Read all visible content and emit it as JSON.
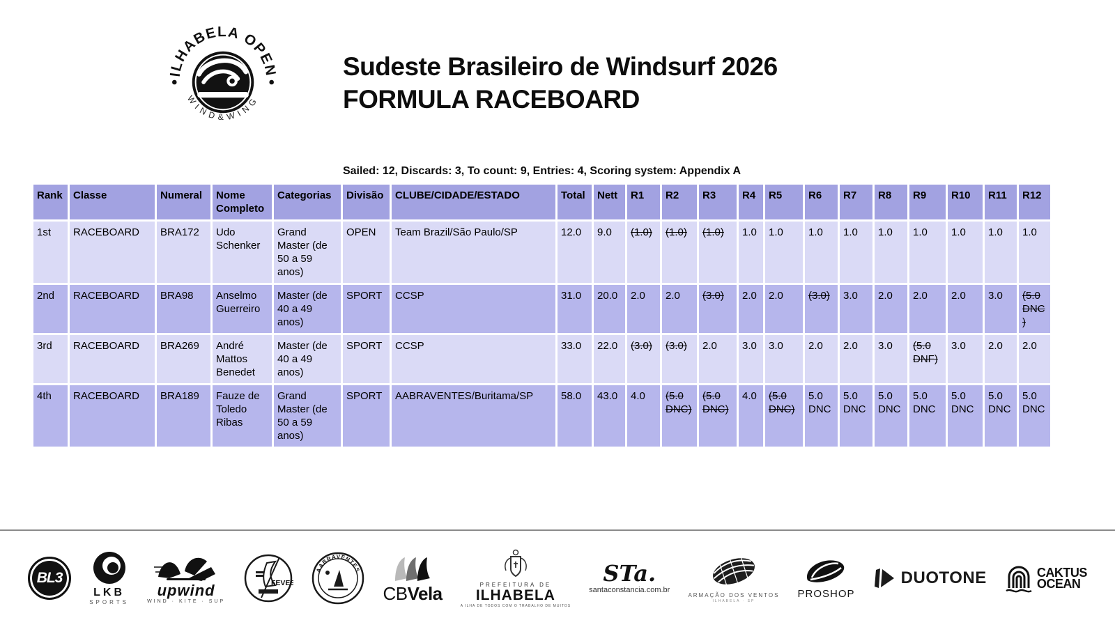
{
  "page": {
    "title_line1": "Sudeste Brasileiro de Windsurf 2026",
    "title_line2": "FORMULA RACEBOARD"
  },
  "logo": {
    "top_text": "ILHABELA OPEN",
    "bottom_text": "WIND&WING"
  },
  "summary": "Sailed: 12, Discards: 3, To count: 9, Entries: 4, Scoring system: Appendix A",
  "colors": {
    "header_bg": "#a2a2e1",
    "row_odd_bg": "#dadaf6",
    "row_even_bg": "#b6b6ec",
    "text": "#000000"
  },
  "table": {
    "columns": [
      "Rank",
      "Classe",
      "Numeral",
      "Nome Completo",
      "Categorias",
      "Divisão",
      "CLUBE/CIDADE/ESTADO",
      "Total",
      "Nett",
      "R1",
      "R2",
      "R3",
      "R4",
      "R5",
      "R6",
      "R7",
      "R8",
      "R9",
      "R10",
      "R11",
      "R12"
    ],
    "rows": [
      {
        "rank": "1st",
        "classe": "RACEBOARD",
        "numeral": "BRA172",
        "nome": "Udo Schenker",
        "categorias": "Grand Master (de 50 a 59 anos)",
        "divisao": "OPEN",
        "clube": "Team Brazil/São Paulo/SP",
        "total": "12.0",
        "nett": "9.0",
        "races": [
          {
            "text": "(1.0)",
            "discarded": true
          },
          {
            "text": "(1.0)",
            "discarded": true
          },
          {
            "text": "(1.0)",
            "discarded": true
          },
          {
            "text": "1.0",
            "discarded": false
          },
          {
            "text": "1.0",
            "discarded": false
          },
          {
            "text": "1.0",
            "discarded": false
          },
          {
            "text": "1.0",
            "discarded": false
          },
          {
            "text": "1.0",
            "discarded": false
          },
          {
            "text": "1.0",
            "discarded": false
          },
          {
            "text": "1.0",
            "discarded": false
          },
          {
            "text": "1.0",
            "discarded": false
          },
          {
            "text": "1.0",
            "discarded": false
          }
        ]
      },
      {
        "rank": "2nd",
        "classe": "RACEBOARD",
        "numeral": "BRA98",
        "nome": "Anselmo Guerreiro",
        "categorias": "Master (de 40 a 49 anos)",
        "divisao": "SPORT",
        "clube": "CCSP",
        "total": "31.0",
        "nett": "20.0",
        "races": [
          {
            "text": "2.0",
            "discarded": false
          },
          {
            "text": "2.0",
            "discarded": false
          },
          {
            "text": "(3.0)",
            "discarded": true
          },
          {
            "text": "2.0",
            "discarded": false
          },
          {
            "text": "2.0",
            "discarded": false
          },
          {
            "text": "(3.0)",
            "discarded": true
          },
          {
            "text": "3.0",
            "discarded": false
          },
          {
            "text": "2.0",
            "discarded": false
          },
          {
            "text": "2.0",
            "discarded": false
          },
          {
            "text": "2.0",
            "discarded": false
          },
          {
            "text": "3.0",
            "discarded": false
          },
          {
            "text": "(5.0 DNC)",
            "discarded": true
          }
        ]
      },
      {
        "rank": "3rd",
        "classe": "RACEBOARD",
        "numeral": "BRA269",
        "nome": "André Mattos Benedet",
        "categorias": "Master (de 40 a 49 anos)",
        "divisao": "SPORT",
        "clube": "CCSP",
        "total": "33.0",
        "nett": "22.0",
        "races": [
          {
            "text": "(3.0)",
            "discarded": true
          },
          {
            "text": "(3.0)",
            "discarded": true
          },
          {
            "text": "2.0",
            "discarded": false
          },
          {
            "text": "3.0",
            "discarded": false
          },
          {
            "text": "3.0",
            "discarded": false
          },
          {
            "text": "2.0",
            "discarded": false
          },
          {
            "text": "2.0",
            "discarded": false
          },
          {
            "text": "3.0",
            "discarded": false
          },
          {
            "text": "(5.0 DNF)",
            "discarded": true
          },
          {
            "text": "3.0",
            "discarded": false
          },
          {
            "text": "2.0",
            "discarded": false
          },
          {
            "text": "2.0",
            "discarded": false
          }
        ]
      },
      {
        "rank": "4th",
        "classe": "RACEBOARD",
        "numeral": "BRA189",
        "nome": "Fauze de Toledo Ribas",
        "categorias": "Grand Master (de 50 a 59 anos)",
        "divisao": "SPORT",
        "clube": "AABRAVENTES/Buritama/SP",
        "total": "58.0",
        "nett": "43.0",
        "races": [
          {
            "text": "4.0",
            "discarded": false
          },
          {
            "text": "(5.0 DNC)",
            "discarded": true
          },
          {
            "text": "(5.0 DNC)",
            "discarded": true
          },
          {
            "text": "4.0",
            "discarded": false
          },
          {
            "text": "(5.0 DNC)",
            "discarded": true
          },
          {
            "text": "5.0 DNC",
            "discarded": false
          },
          {
            "text": "5.0 DNC",
            "discarded": false
          },
          {
            "text": "5.0 DNC",
            "discarded": false
          },
          {
            "text": "5.0 DNC",
            "discarded": false
          },
          {
            "text": "5.0 DNC",
            "discarded": false
          },
          {
            "text": "5.0 DNC",
            "discarded": false
          },
          {
            "text": "5.0 DNC",
            "discarded": false
          }
        ]
      }
    ]
  },
  "sponsors": {
    "bl3": {
      "label": "BL3"
    },
    "lkb": {
      "name": "LKB",
      "sub": "SPORTS"
    },
    "upwind": {
      "name": "upwind",
      "sub": "WIND · KITE · SUP"
    },
    "fevesp": {
      "label": "FEVESP"
    },
    "aabraventes": {
      "label": "AABRAVENTES"
    },
    "cbvela": {
      "cb": "CB",
      "vela": "Vela"
    },
    "prefeitura": {
      "top": "PREFEITURA DE",
      "name": "ILHABELA",
      "tagline": "A ILHA DE TODOS COM O TRABALHO DE MUITOS"
    },
    "santaconstancia": {
      "script": "STa.",
      "url": "santaconstancia.com.br"
    },
    "armacao": {
      "name": "ARMAÇÃO DOS VENTOS",
      "sub": "ILHABELA · SP"
    },
    "proshop": {
      "label": "PROSHOP"
    },
    "duotone": {
      "label": "DUOTONE"
    },
    "caktus": {
      "line1": "CAKTUS",
      "line2": "OCEAN"
    }
  }
}
